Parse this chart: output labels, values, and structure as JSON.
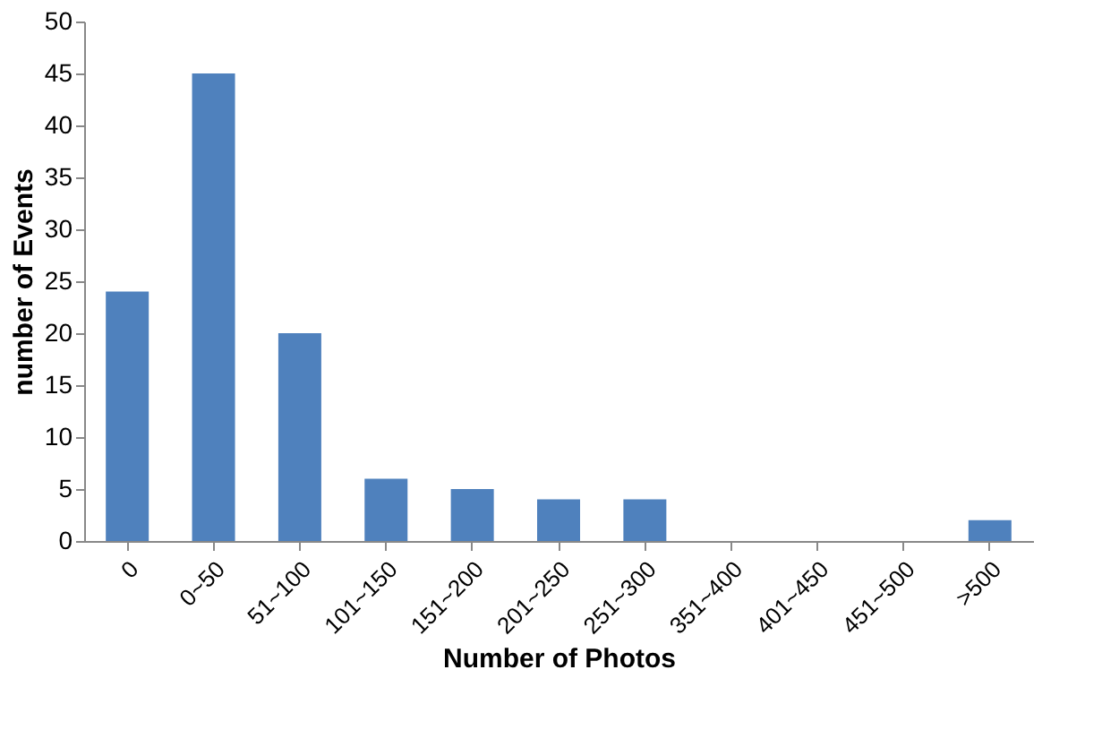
{
  "chart_data": {
    "type": "bar",
    "xlabel": "Number of Photos",
    "ylabel": "number of Events",
    "categories": [
      "0",
      "0~50",
      "51~100",
      "101~150",
      "151~200",
      "201~250",
      "251~300",
      "351~400",
      "401~450",
      "451~500",
      ">500"
    ],
    "values": [
      24,
      45,
      20,
      6,
      5,
      4,
      4,
      0,
      0,
      0,
      2
    ],
    "color": "#4f81bd",
    "ylim": [
      0,
      50
    ],
    "yticks": [
      0,
      5,
      10,
      15,
      20,
      25,
      30,
      35,
      40,
      45,
      50
    ],
    "grid": false
  }
}
